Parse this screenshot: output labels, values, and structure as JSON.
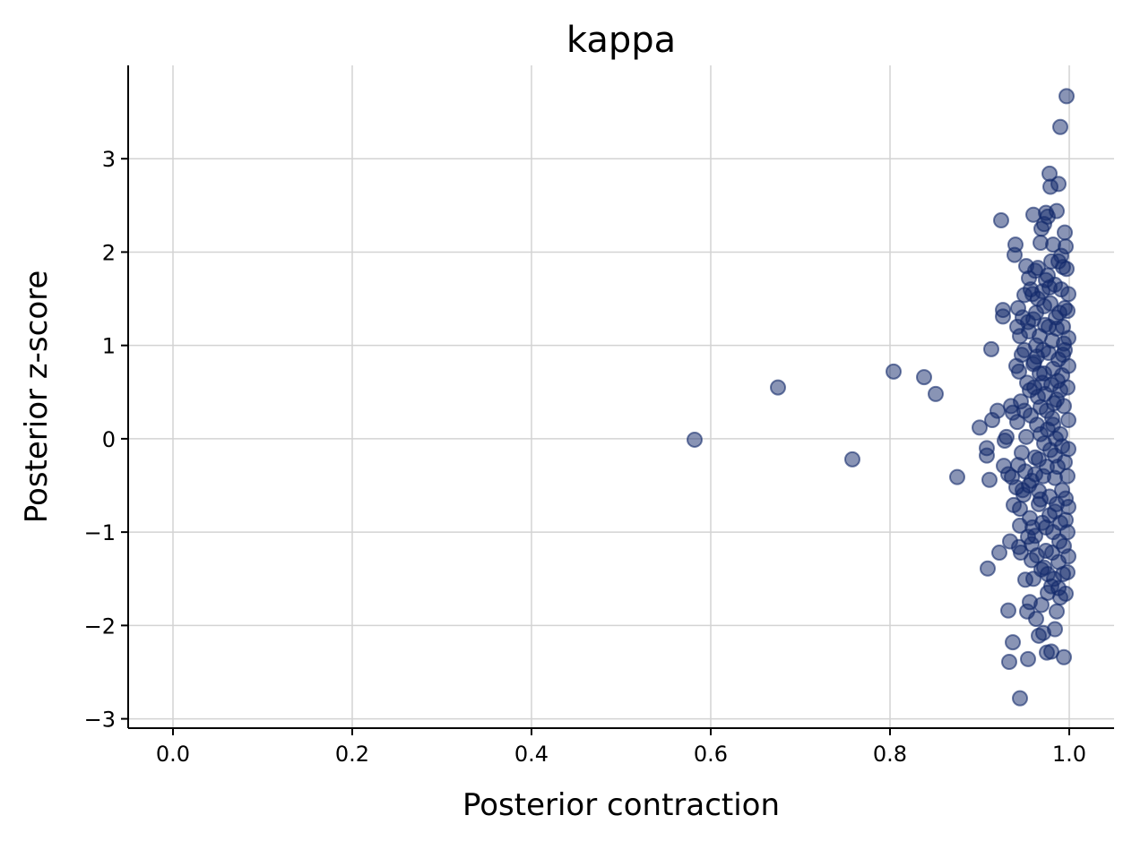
{
  "chart_data": {
    "type": "scatter",
    "title": "kappa",
    "xlabel": "Posterior contraction",
    "ylabel": "Posterior z-score",
    "xlim": [
      -0.05,
      1.05
    ],
    "ylim": [
      -3.1,
      4.0
    ],
    "xticks": [
      0.0,
      0.2,
      0.4,
      0.6,
      0.8,
      1.0
    ],
    "xtick_labels": [
      "0.0",
      "0.2",
      "0.4",
      "0.6",
      "0.8",
      "1.0"
    ],
    "yticks": [
      -3,
      -2,
      -1,
      0,
      1,
      2,
      3
    ],
    "ytick_labels": [
      "−3",
      "−2",
      "−1",
      "0",
      "1",
      "2",
      "3"
    ],
    "grid": true,
    "marker_color": "#132a6b",
    "marker_alpha": 0.5,
    "series": [
      {
        "points": [
          [
            0.582,
            -0.01
          ],
          [
            0.675,
            0.55
          ],
          [
            0.758,
            -0.22
          ],
          [
            0.804,
            0.72
          ],
          [
            0.838,
            0.66
          ],
          [
            0.851,
            0.48
          ],
          [
            0.875,
            -0.41
          ],
          [
            0.9,
            0.12
          ],
          [
            0.908,
            -0.1
          ],
          [
            0.908,
            -0.18
          ],
          [
            0.909,
            -1.39
          ],
          [
            0.911,
            -0.44
          ],
          [
            0.913,
            0.96
          ],
          [
            0.914,
            0.2
          ],
          [
            0.92,
            0.3
          ],
          [
            0.922,
            -1.22
          ],
          [
            0.924,
            2.34
          ],
          [
            0.926,
            1.38
          ],
          [
            0.926,
            1.31
          ],
          [
            0.927,
            -0.29
          ],
          [
            0.928,
            -0.02
          ],
          [
            0.93,
            0.02
          ],
          [
            0.932,
            -0.38
          ],
          [
            0.932,
            -1.84
          ],
          [
            0.933,
            -2.39
          ],
          [
            0.934,
            -1.1
          ],
          [
            0.935,
            0.35
          ],
          [
            0.936,
            -0.41
          ],
          [
            0.937,
            -2.18
          ],
          [
            0.937,
            0.28
          ],
          [
            0.938,
            -0.71
          ],
          [
            0.939,
            1.97
          ],
          [
            0.94,
            2.08
          ],
          [
            0.941,
            0.78
          ],
          [
            0.942,
            1.2
          ],
          [
            0.943,
            1.4
          ],
          [
            0.944,
            -1.16
          ],
          [
            0.945,
            -0.93
          ],
          [
            0.945,
            -2.78
          ],
          [
            0.946,
            -1.22
          ],
          [
            0.947,
            0.9
          ],
          [
            0.948,
            -0.55
          ],
          [
            0.95,
            1.54
          ],
          [
            0.951,
            -1.51
          ],
          [
            0.952,
            1.85
          ],
          [
            0.953,
            -1.85
          ],
          [
            0.954,
            -2.36
          ],
          [
            0.955,
            1.72
          ],
          [
            0.956,
            0.52
          ],
          [
            0.958,
            -1.13
          ],
          [
            0.96,
            2.4
          ],
          [
            0.962,
            1.8
          ],
          [
            0.963,
            -1.93
          ],
          [
            0.965,
            1.83
          ],
          [
            0.966,
            -2.11
          ],
          [
            0.968,
            2.1
          ],
          [
            0.969,
            2.25
          ],
          [
            0.971,
            -2.08
          ],
          [
            0.972,
            2.3
          ],
          [
            0.974,
            2.42
          ],
          [
            0.975,
            -2.29
          ],
          [
            0.976,
            2.38
          ],
          [
            0.978,
            2.84
          ],
          [
            0.979,
            2.7
          ],
          [
            0.98,
            -2.28
          ],
          [
            0.982,
            2.08
          ],
          [
            0.984,
            -2.04
          ],
          [
            0.986,
            2.44
          ],
          [
            0.988,
            2.73
          ],
          [
            0.99,
            3.34
          ],
          [
            0.991,
            1.96
          ],
          [
            0.993,
            1.84
          ],
          [
            0.994,
            -2.34
          ],
          [
            0.995,
            2.21
          ],
          [
            0.996,
            2.06
          ],
          [
            0.997,
            3.67
          ],
          [
            0.998,
            -1.43
          ],
          [
            0.999,
            1.55
          ],
          [
            0.998,
            1.37
          ],
          [
            0.999,
            1.08
          ],
          [
            0.999,
            0.78
          ],
          [
            0.998,
            0.55
          ],
          [
            0.999,
            0.2
          ],
          [
            0.999,
            -0.11
          ],
          [
            0.998,
            -0.4
          ],
          [
            0.999,
            -0.73
          ],
          [
            0.998,
            -1.0
          ],
          [
            0.999,
            -1.26
          ],
          [
            0.997,
            1.82
          ],
          [
            0.996,
            -1.66
          ],
          [
            0.995,
            1.4
          ],
          [
            0.996,
            -0.87
          ],
          [
            0.995,
            0.95
          ],
          [
            0.994,
            0.35
          ],
          [
            0.995,
            -0.25
          ],
          [
            0.993,
            1.2
          ],
          [
            0.993,
            -1.45
          ],
          [
            0.992,
            0.68
          ],
          [
            0.992,
            -0.55
          ],
          [
            0.991,
            1.6
          ],
          [
            0.99,
            -1.7
          ],
          [
            0.99,
            0.05
          ],
          [
            0.989,
            -1.1
          ],
          [
            0.988,
            0.85
          ],
          [
            0.988,
            1.9
          ],
          [
            0.987,
            -0.3
          ],
          [
            0.986,
            -1.85
          ],
          [
            0.986,
            0.42
          ],
          [
            0.985,
            1.3
          ],
          [
            0.984,
            -0.78
          ],
          [
            0.984,
            1.65
          ],
          [
            0.983,
            -1.5
          ],
          [
            0.982,
            0.15
          ],
          [
            0.981,
            1.05
          ],
          [
            0.981,
            -1.22
          ],
          [
            0.98,
            0.58
          ],
          [
            0.979,
            -0.12
          ],
          [
            0.979,
            1.45
          ],
          [
            0.978,
            -0.62
          ],
          [
            0.977,
            0.92
          ],
          [
            0.976,
            -1.65
          ],
          [
            0.976,
            1.75
          ],
          [
            0.975,
            0.3
          ],
          [
            0.974,
            -0.95
          ],
          [
            0.973,
            1.22
          ],
          [
            0.972,
            -1.38
          ],
          [
            0.972,
            0.7
          ],
          [
            0.971,
            -0.4
          ],
          [
            0.97,
            1.58
          ],
          [
            0.969,
            -1.78
          ],
          [
            0.968,
            0.05
          ],
          [
            0.967,
            1.1
          ],
          [
            0.966,
            -0.7
          ],
          [
            0.965,
            0.45
          ],
          [
            0.964,
            -1.25
          ],
          [
            0.963,
            1.35
          ],
          [
            0.962,
            -0.2
          ],
          [
            0.961,
            0.82
          ],
          [
            0.96,
            -1.5
          ],
          [
            0.959,
            1.55
          ],
          [
            0.958,
            -0.45
          ],
          [
            0.957,
            0.25
          ],
          [
            0.956,
            -0.85
          ],
          [
            0.955,
            1.15
          ],
          [
            0.954,
            -1.05
          ],
          [
            0.953,
            0.6
          ],
          [
            0.952,
            0.02
          ],
          [
            0.951,
            -0.35
          ],
          [
            0.95,
            0.95
          ],
          [
            0.949,
            -0.6
          ],
          [
            0.948,
            1.3
          ],
          [
            0.947,
            -0.15
          ],
          [
            0.946,
            0.4
          ],
          [
            0.945,
            -0.75
          ],
          [
            0.944,
            0.72
          ],
          [
            0.943,
            -0.28
          ],
          [
            0.942,
            0.18
          ],
          [
            0.941,
            -0.52
          ],
          [
            0.96,
            1.28
          ],
          [
            0.962,
            -1.04
          ],
          [
            0.964,
            0.88
          ],
          [
            0.966,
            -0.56
          ],
          [
            0.968,
            0.34
          ],
          [
            0.97,
            -0.9
          ],
          [
            0.972,
            1.42
          ],
          [
            0.974,
            -1.2
          ],
          [
            0.976,
            0.1
          ],
          [
            0.978,
            1.62
          ],
          [
            0.98,
            -1.58
          ],
          [
            0.982,
            0.75
          ],
          [
            0.984,
            -0.42
          ],
          [
            0.986,
            1.18
          ],
          [
            0.988,
            -1.32
          ],
          [
            0.99,
            0.52
          ],
          [
            0.992,
            -0.08
          ],
          [
            0.994,
            1.02
          ],
          [
            0.996,
            -0.64
          ],
          [
            0.97,
            0.6
          ],
          [
            0.975,
            -0.3
          ],
          [
            0.98,
            1.9
          ],
          [
            0.985,
            0.0
          ],
          [
            0.99,
            -0.9
          ],
          [
            0.965,
            1.5
          ],
          [
            0.96,
            0.8
          ],
          [
            0.955,
            -0.5
          ],
          [
            0.95,
            0.3
          ],
          [
            0.945,
            1.1
          ],
          [
            0.978,
            -0.82
          ],
          [
            0.983,
            0.38
          ],
          [
            0.988,
            -1.6
          ],
          [
            0.993,
            0.9
          ],
          [
            0.974,
            1.7
          ],
          [
            0.969,
            -1.4
          ],
          [
            0.964,
            0.15
          ],
          [
            0.959,
            -0.95
          ],
          [
            0.954,
            1.25
          ],
          [
            0.984,
            -0.18
          ],
          [
            0.989,
            1.35
          ],
          [
            0.994,
            -1.15
          ],
          [
            0.973,
            0.48
          ],
          [
            0.968,
            -0.65
          ],
          [
            0.963,
            1.0
          ],
          [
            0.958,
            -1.3
          ],
          [
            0.987,
            0.62
          ],
          [
            0.982,
            -1.0
          ],
          [
            0.977,
            1.2
          ],
          [
            0.972,
            -0.05
          ],
          [
            0.967,
            0.7
          ],
          [
            0.962,
            -0.38
          ],
          [
            0.957,
            1.6
          ],
          [
            0.986,
            -0.7
          ],
          [
            0.981,
            0.22
          ],
          [
            0.976,
            -1.45
          ],
          [
            0.971,
            0.95
          ],
          [
            0.966,
            -0.22
          ],
          [
            0.961,
            0.55
          ],
          [
            0.956,
            -1.75
          ]
        ]
      }
    ]
  }
}
